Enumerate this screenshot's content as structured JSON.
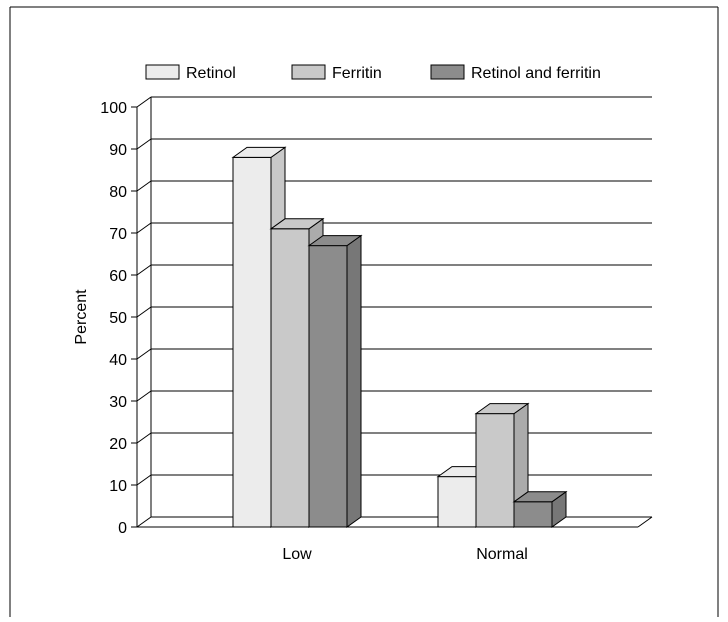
{
  "chart_data": {
    "type": "bar",
    "title": "",
    "xlabel": "",
    "ylabel": "Percent",
    "ylim": [
      0,
      100
    ],
    "yticks": [
      0,
      10,
      20,
      30,
      40,
      50,
      60,
      70,
      80,
      90,
      100
    ],
    "categories": [
      "Low",
      "Normal"
    ],
    "series": [
      {
        "name": "Retinol",
        "values": [
          88,
          12
        ],
        "color": "#ececec"
      },
      {
        "name": "Ferritin",
        "values": [
          71,
          27
        ],
        "color": "#c9c9c9"
      },
      {
        "name": "Retinol and ferritin",
        "values": [
          67,
          6
        ],
        "color": "#8c8c8c"
      }
    ],
    "grid": true,
    "legend_position": "top"
  }
}
